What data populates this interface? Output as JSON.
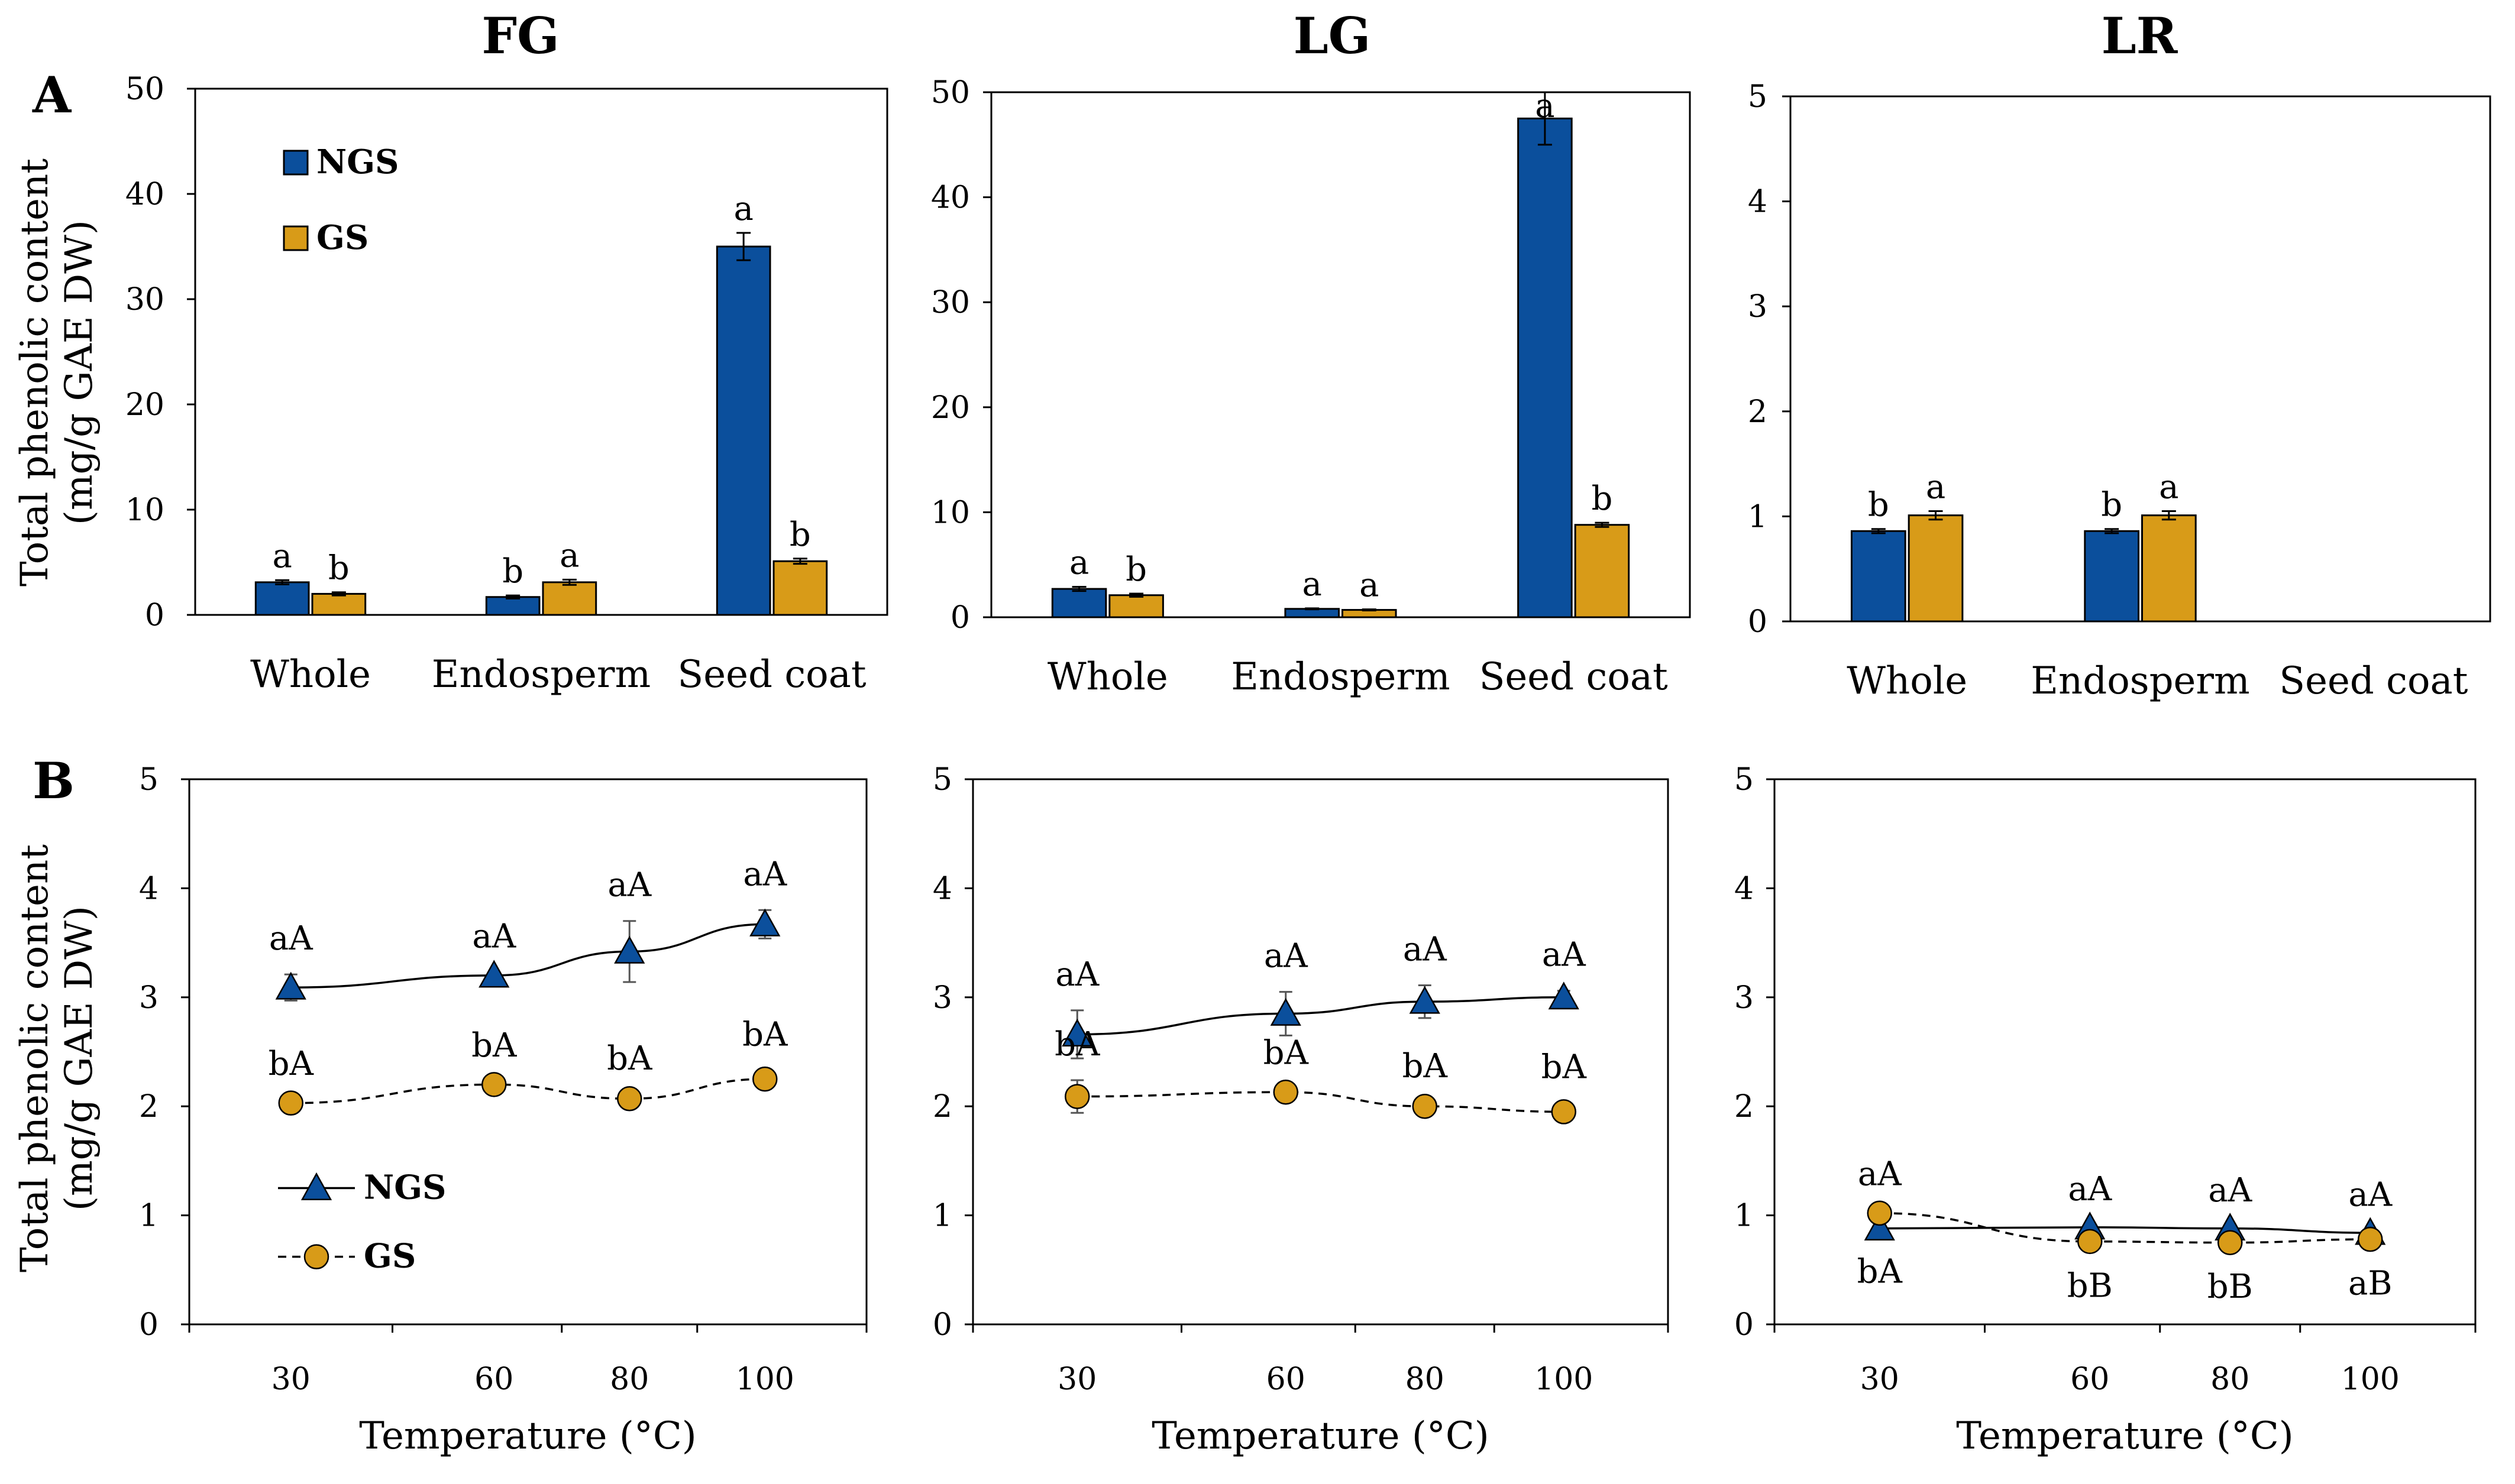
{
  "figure": {
    "ylabel_line1": "Total phenolic content",
    "ylabel_line2": "(mg/g GAE DW)"
  },
  "colors": {
    "NGS": "#0b4f9c",
    "GS": "#d89b18",
    "axis": "#000000"
  },
  "chart_data": [
    {
      "id": "A-FG",
      "type": "bar",
      "panel": "A",
      "title": "FG",
      "categories": [
        "Whole",
        "Endosperm",
        "Seed coat"
      ],
      "ylim": [
        0,
        50
      ],
      "yticks": [
        0,
        10,
        20,
        30,
        40,
        50
      ],
      "legend": {
        "position": "top-left",
        "labels": [
          "NGS",
          "GS"
        ]
      },
      "series": [
        {
          "name": "NGS",
          "values": [
            3.1,
            1.7,
            35.0
          ],
          "errors": [
            0.2,
            0.15,
            1.3
          ],
          "labels": [
            "a",
            "b",
            "a"
          ]
        },
        {
          "name": "GS",
          "values": [
            2.0,
            3.1,
            5.1
          ],
          "errors": [
            0.15,
            0.25,
            0.25
          ],
          "labels": [
            "b",
            "a",
            "b"
          ]
        }
      ]
    },
    {
      "id": "A-LG",
      "type": "bar",
      "panel": "A",
      "title": "LG",
      "categories": [
        "Whole",
        "Endosperm",
        "Seed coat"
      ],
      "ylim": [
        0,
        50
      ],
      "yticks": [
        0,
        10,
        20,
        30,
        40,
        50
      ],
      "series": [
        {
          "name": "NGS",
          "values": [
            2.7,
            0.8,
            47.5
          ],
          "errors": [
            0.2,
            0.05,
            2.5
          ],
          "labels": [
            "a",
            "a",
            "a"
          ]
        },
        {
          "name": "GS",
          "values": [
            2.1,
            0.7,
            8.8
          ],
          "errors": [
            0.15,
            0.05,
            0.2
          ],
          "labels": [
            "b",
            "a",
            "b"
          ]
        }
      ]
    },
    {
      "id": "A-LR",
      "type": "bar",
      "panel": "A",
      "title": "LR",
      "categories": [
        "Whole",
        "Endosperm",
        "Seed coat"
      ],
      "ylim": [
        0,
        5
      ],
      "yticks": [
        0,
        1,
        2,
        3,
        4,
        5
      ],
      "series": [
        {
          "name": "NGS",
          "values": [
            0.86,
            0.86,
            null
          ],
          "errors": [
            0.02,
            0.02,
            null
          ],
          "labels": [
            "b",
            "b",
            ""
          ]
        },
        {
          "name": "GS",
          "values": [
            1.01,
            1.01,
            null
          ],
          "errors": [
            0.04,
            0.04,
            null
          ],
          "labels": [
            "a",
            "a",
            ""
          ]
        }
      ]
    },
    {
      "id": "B-FG",
      "type": "line",
      "panel": "B",
      "x": [
        30,
        60,
        80,
        100
      ],
      "xlabel": "Temperature (°C)",
      "ylim": [
        0,
        5
      ],
      "yticks": [
        0,
        1,
        2,
        3,
        4,
        5
      ],
      "xlim": [
        15,
        115
      ],
      "xgrid": [
        15,
        45,
        70,
        90,
        115
      ],
      "legend": {
        "position": "bottom-left",
        "labels": [
          "NGS",
          "GS"
        ]
      },
      "series": [
        {
          "name": "NGS",
          "values": [
            3.09,
            3.2,
            3.42,
            3.67
          ],
          "errors": [
            0.12,
            0.03,
            0.28,
            0.13
          ],
          "labels": [
            "aA",
            "aA",
            "aA",
            "aA"
          ],
          "label_pos": [
            "above",
            "above",
            "above",
            "above"
          ]
        },
        {
          "name": "GS",
          "values": [
            2.03,
            2.2,
            2.07,
            2.25
          ],
          "errors": [
            0.03,
            0.03,
            0.04,
            0.08
          ],
          "labels": [
            "bA",
            "bA",
            "bA",
            "bA"
          ],
          "label_pos": [
            "above",
            "above",
            "above",
            "above"
          ]
        }
      ]
    },
    {
      "id": "B-LG",
      "type": "line",
      "panel": "B",
      "x": [
        30,
        60,
        80,
        100
      ],
      "xlabel": "Temperature (°C)",
      "ylim": [
        0,
        5
      ],
      "yticks": [
        0,
        1,
        2,
        3,
        4,
        5
      ],
      "xlim": [
        15,
        115
      ],
      "xgrid": [
        15,
        45,
        70,
        90,
        115
      ],
      "series": [
        {
          "name": "NGS",
          "values": [
            2.66,
            2.85,
            2.96,
            3.0
          ],
          "errors": [
            0.22,
            0.2,
            0.15,
            0.06
          ],
          "labels": [
            "aA",
            "aA",
            "aA",
            "aA"
          ],
          "label_pos": [
            "above",
            "above",
            "above",
            "above"
          ]
        },
        {
          "name": "GS",
          "values": [
            2.09,
            2.13,
            2.0,
            1.95
          ],
          "errors": [
            0.15,
            0.03,
            0.04,
            0.08
          ],
          "labels": [
            "bA",
            "bA",
            "bA",
            "bA"
          ],
          "label_pos": [
            "above",
            "above",
            "above",
            "above"
          ]
        }
      ]
    },
    {
      "id": "B-LR",
      "type": "line",
      "panel": "B",
      "x": [
        30,
        60,
        80,
        100
      ],
      "xlabel": "Temperature (°C)",
      "ylim": [
        0,
        5
      ],
      "yticks": [
        0,
        1,
        2,
        3,
        4,
        5
      ],
      "xlim": [
        15,
        115
      ],
      "xgrid": [
        15,
        45,
        70,
        90,
        115
      ],
      "series": [
        {
          "name": "NGS",
          "values": [
            0.88,
            0.89,
            0.88,
            0.84
          ],
          "errors": [
            0.02,
            0.02,
            0.02,
            0.02
          ],
          "labels": [
            "bA",
            "aA",
            "aA",
            "aA"
          ],
          "label_pos": [
            "below",
            "above",
            "above",
            "above"
          ]
        },
        {
          "name": "GS",
          "values": [
            1.02,
            0.76,
            0.75,
            0.78
          ],
          "errors": [
            0.03,
            0.03,
            0.03,
            0.03
          ],
          "labels": [
            "aA",
            "bB",
            "bB",
            "aB"
          ],
          "label_pos": [
            "above",
            "below",
            "below",
            "below"
          ]
        }
      ]
    }
  ]
}
